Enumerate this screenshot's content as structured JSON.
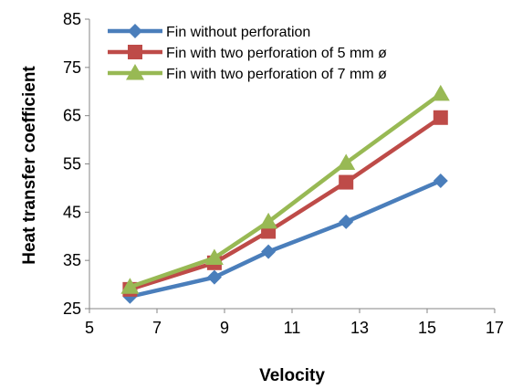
{
  "chart_data": {
    "type": "line",
    "title": "",
    "xlabel": "Velocity",
    "ylabel": "Heat transfer coefficient",
    "xlim": [
      5,
      17
    ],
    "ylim": [
      25,
      85
    ],
    "xticks": [
      5,
      7,
      9,
      11,
      13,
      15,
      17
    ],
    "yticks": [
      25,
      35,
      45,
      55,
      65,
      75,
      85
    ],
    "grid": false,
    "legend_position": "top-left",
    "series": [
      {
        "name": "Fin without perforation",
        "color": "#4a7ebb",
        "marker": "diamond",
        "x": [
          6.2,
          8.7,
          10.3,
          12.6,
          15.4
        ],
        "y": [
          27.5,
          31.5,
          36.8,
          43.0,
          51.5
        ]
      },
      {
        "name": "Fin with two perforation of 5 mm ø",
        "color": "#be4b48",
        "marker": "square",
        "x": [
          6.2,
          8.7,
          10.3,
          12.6,
          15.4
        ],
        "y": [
          29.0,
          34.5,
          41.0,
          51.2,
          64.6
        ]
      },
      {
        "name": "Fin with two perforation of 7 mm ø",
        "color": "#98b954",
        "marker": "triangle",
        "x": [
          6.2,
          8.7,
          10.3,
          12.6,
          15.4
        ],
        "y": [
          29.5,
          35.5,
          43.0,
          55.2,
          69.5
        ]
      }
    ]
  }
}
